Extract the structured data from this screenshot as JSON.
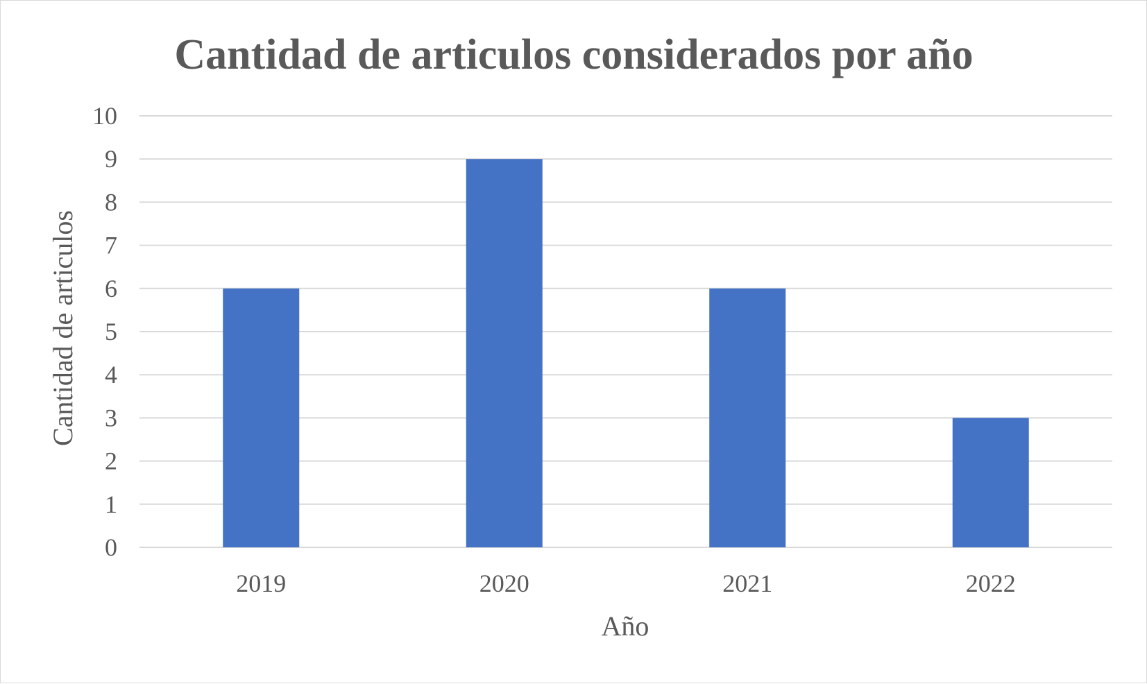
{
  "chart_data": {
    "type": "bar",
    "title": "Cantidad de articulos considerados por año",
    "xlabel": "Año",
    "ylabel": "Cantidad de articulos",
    "categories": [
      "2019",
      "2020",
      "2021",
      "2022"
    ],
    "values": [
      6,
      9,
      6,
      3
    ],
    "ylim": [
      0,
      10
    ],
    "yticks": [
      "0",
      "1",
      "2",
      "3",
      "4",
      "5",
      "6",
      "7",
      "8",
      "9",
      "10"
    ],
    "grid": true,
    "legend": "none",
    "bar_color": "#4472C4",
    "grid_color": "#d9d9d9"
  }
}
